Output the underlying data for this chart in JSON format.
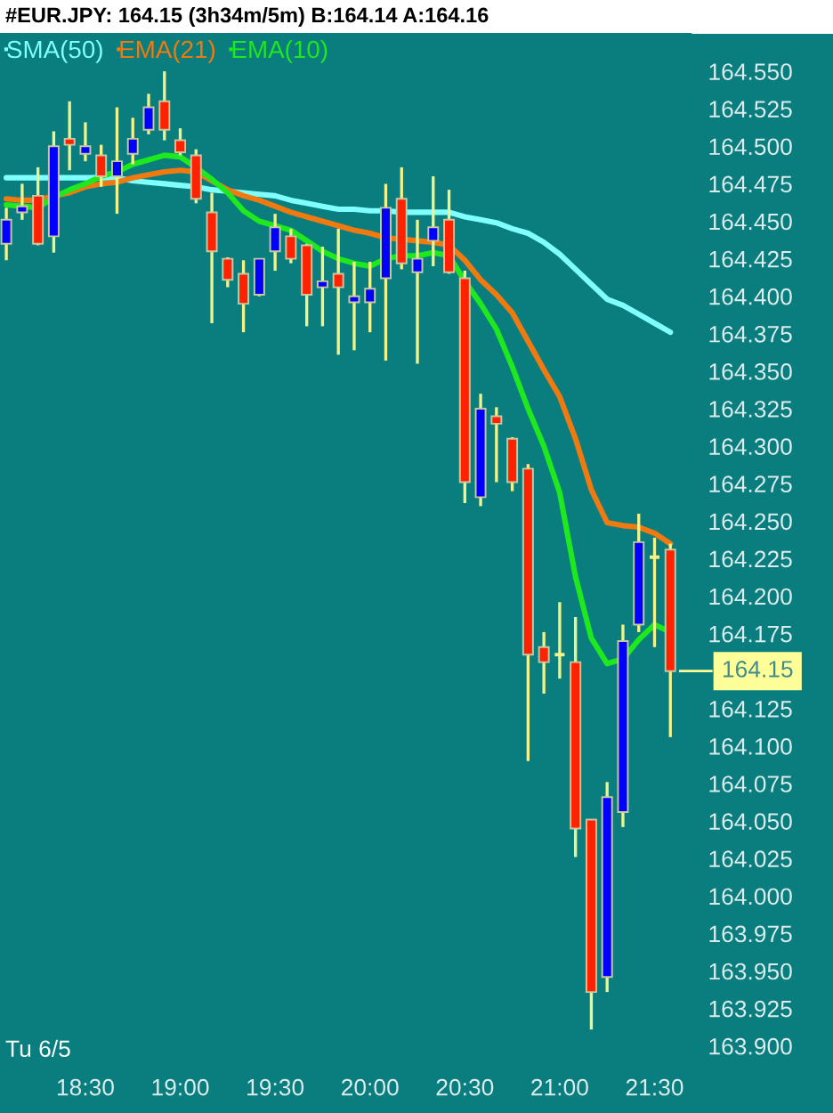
{
  "chart_data": {
    "type": "candlestick",
    "title": "#EUR.JPY: 164.15 (3h34m/5m) B:164.14 A:164.16",
    "x": [
      18.0833,
      18.1667,
      18.25,
      18.3333,
      18.4167,
      18.5,
      18.5833,
      18.6667,
      18.75,
      18.8333,
      18.9167,
      19.0,
      19.0833,
      19.1667,
      19.25,
      19.3333,
      19.4167,
      19.5,
      19.5833,
      19.6667,
      19.75,
      19.8333,
      19.9167,
      20.0,
      20.0833,
      20.1667,
      20.25,
      20.3333,
      20.4167,
      20.5,
      20.5833,
      20.6667,
      20.75,
      20.8333,
      20.9167,
      21.0,
      21.0833,
      21.1667,
      21.25,
      21.3333,
      21.4167,
      21.5,
      21.5833
    ],
    "ohlc": [
      [
        164.435,
        164.459,
        164.424,
        164.451
      ],
      [
        164.456,
        164.475,
        164.451,
        164.46
      ],
      [
        164.467,
        164.486,
        164.434,
        164.435
      ],
      [
        164.44,
        164.51,
        164.429,
        164.5
      ],
      [
        164.505,
        164.53,
        164.484,
        164.501
      ],
      [
        164.495,
        164.516,
        164.49,
        164.5
      ],
      [
        164.494,
        164.501,
        164.473,
        164.48
      ],
      [
        164.48,
        164.526,
        164.455,
        164.49
      ],
      [
        164.495,
        164.519,
        164.488,
        164.505
      ],
      [
        164.511,
        164.535,
        164.508,
        164.526
      ],
      [
        164.53,
        164.55,
        164.504,
        164.511
      ],
      [
        164.504,
        164.512,
        164.494,
        164.496
      ],
      [
        164.494,
        164.498,
        164.462,
        164.465
      ],
      [
        164.456,
        164.469,
        164.382,
        164.43
      ],
      [
        164.425,
        164.426,
        164.406,
        164.411
      ],
      [
        164.415,
        164.424,
        164.376,
        164.395
      ],
      [
        164.401,
        164.425,
        164.4,
        164.425
      ],
      [
        164.43,
        164.455,
        164.417,
        164.446
      ],
      [
        164.44,
        164.445,
        164.422,
        164.425
      ],
      [
        164.434,
        164.435,
        164.38,
        164.401
      ],
      [
        164.406,
        164.433,
        164.38,
        164.41
      ],
      [
        164.415,
        164.445,
        164.361,
        164.406
      ],
      [
        164.396,
        164.423,
        164.364,
        164.4
      ],
      [
        164.396,
        164.423,
        164.376,
        164.405
      ],
      [
        164.412,
        164.475,
        164.357,
        164.459
      ],
      [
        164.465,
        164.486,
        164.418,
        164.422
      ],
      [
        164.416,
        164.451,
        164.355,
        164.425
      ],
      [
        164.437,
        164.48,
        164.42,
        164.446
      ],
      [
        164.451,
        164.471,
        164.415,
        164.416
      ],
      [
        164.412,
        164.417,
        164.262,
        164.276
      ],
      [
        164.266,
        164.335,
        164.26,
        164.325
      ],
      [
        164.32,
        164.326,
        164.276,
        164.315
      ],
      [
        164.305,
        164.306,
        164.27,
        164.276
      ],
      [
        164.285,
        164.288,
        164.09,
        164.161
      ],
      [
        164.166,
        164.176,
        164.135,
        164.156
      ],
      [
        164.161,
        164.196,
        164.145,
        164.161
      ],
      [
        164.156,
        164.186,
        164.026,
        164.045
      ],
      [
        164.051,
        164.051,
        163.911,
        163.936
      ],
      [
        163.946,
        164.076,
        163.936,
        164.066
      ],
      [
        164.056,
        164.181,
        164.046,
        164.17
      ],
      [
        164.181,
        164.255,
        164.176,
        164.236
      ],
      [
        164.226,
        164.239,
        164.166,
        164.226
      ],
      [
        164.231,
        164.235,
        164.106,
        164.15
      ]
    ],
    "colors": [
      "#0000ff",
      "#0000ff",
      "#ff2200",
      "#0000ff",
      "#ff2200",
      "#0000ff",
      "#ff2200",
      "#0000ff",
      "#0000ff",
      "#0000ff",
      "#ff2200",
      "#ff2200",
      "#ff2200",
      "#ff2200",
      "#ff2200",
      "#ff2200",
      "#0000ff",
      "#0000ff",
      "#ff2200",
      "#ff2200",
      "#0000ff",
      "#ff2200",
      "#0000ff",
      "#0000ff",
      "#0000ff",
      "#ff2200",
      "#0000ff",
      "#0000ff",
      "#ff2200",
      "#ff2200",
      "#0000ff",
      "#ff2200",
      "#ff2200",
      "#ff2200",
      "#ff2200",
      "#f2f28a",
      "#ff2200",
      "#ff2200",
      "#0000ff",
      "#0000ff",
      "#0000ff",
      "#f2f28a",
      "#ff2200"
    ],
    "series": [
      {
        "name": "SMA(50)",
        "type": "line",
        "color": "#80ffff",
        "values": [
          164.479,
          164.479,
          164.479,
          164.479,
          164.479,
          164.479,
          164.479,
          164.479,
          164.477,
          164.476,
          164.475,
          164.474,
          164.473,
          164.471,
          164.47,
          164.469,
          164.468,
          164.467,
          164.464,
          164.462,
          164.46,
          164.458,
          164.458,
          164.457,
          164.457,
          164.456,
          164.456,
          164.456,
          164.456,
          164.453,
          164.451,
          164.449,
          164.445,
          164.442,
          164.436,
          164.428,
          164.418,
          164.408,
          164.398,
          164.394,
          164.388,
          164.382,
          164.376
        ]
      },
      {
        "name": "EMA(21)",
        "type": "line",
        "color": "#f07a10",
        "values": [
          164.465,
          164.464,
          164.464,
          164.467,
          164.469,
          164.473,
          164.475,
          164.476,
          164.479,
          164.481,
          164.483,
          164.484,
          164.483,
          164.477,
          164.471,
          164.467,
          164.464,
          164.46,
          164.456,
          164.453,
          164.45,
          164.447,
          164.444,
          164.442,
          164.439,
          164.438,
          164.437,
          164.436,
          164.434,
          164.424,
          164.411,
          164.401,
          164.389,
          164.37,
          164.351,
          164.333,
          164.305,
          164.271,
          164.249,
          164.247,
          164.246,
          164.242,
          164.235
        ]
      },
      {
        "name": "EMA(10)",
        "type": "line",
        "color": "#1ee81e",
        "values": [
          164.461,
          164.46,
          164.459,
          164.466,
          164.471,
          164.475,
          164.48,
          164.483,
          164.488,
          164.491,
          164.494,
          164.493,
          164.486,
          164.478,
          164.469,
          164.457,
          164.45,
          164.447,
          164.444,
          164.437,
          164.43,
          164.425,
          164.422,
          164.42,
          164.425,
          164.427,
          164.427,
          164.429,
          164.427,
          164.41,
          164.395,
          164.378,
          164.353,
          164.325,
          164.3,
          164.269,
          164.213,
          164.172,
          164.155,
          164.158,
          164.171,
          164.181,
          164.176
        ]
      }
    ],
    "xlim": [
      18.05,
      21.69
    ],
    "xticks": [
      {
        "value": 18.5,
        "label": "18:30"
      },
      {
        "value": 19,
        "label": "19:00"
      },
      {
        "value": 19.5,
        "label": "19:30"
      },
      {
        "value": 20,
        "label": "20:00"
      },
      {
        "value": 20.5,
        "label": "20:30"
      },
      {
        "value": 21,
        "label": "21:00"
      },
      {
        "value": 21.5,
        "label": "21:30"
      }
    ],
    "ylim": [
      163.885,
      164.575
    ],
    "yticks": [
      {
        "value": 163.9,
        "label": "163.900"
      },
      {
        "value": 163.925,
        "label": "163.925"
      },
      {
        "value": 163.95,
        "label": "163.950"
      },
      {
        "value": 163.975,
        "label": "163.975"
      },
      {
        "value": 164.0,
        "label": "164.000"
      },
      {
        "value": 164.025,
        "label": "164.025"
      },
      {
        "value": 164.05,
        "label": "164.050"
      },
      {
        "value": 164.075,
        "label": "164.075"
      },
      {
        "value": 164.1,
        "label": "164.100"
      },
      {
        "value": 164.125,
        "label": "164.125"
      },
      {
        "value": 164.175,
        "label": "164.175"
      },
      {
        "value": 164.2,
        "label": "164.200"
      },
      {
        "value": 164.225,
        "label": "164.225"
      },
      {
        "value": 164.25,
        "label": "164.250"
      },
      {
        "value": 164.275,
        "label": "164.275"
      },
      {
        "value": 164.3,
        "label": "164.300"
      },
      {
        "value": 164.325,
        "label": "164.325"
      },
      {
        "value": 164.35,
        "label": "164.350"
      },
      {
        "value": 164.375,
        "label": "164.375"
      },
      {
        "value": 164.4,
        "label": "164.400"
      },
      {
        "value": 164.425,
        "label": "164.425"
      },
      {
        "value": 164.45,
        "label": "164.450"
      },
      {
        "value": 164.475,
        "label": "164.475"
      },
      {
        "value": 164.5,
        "label": "164.500"
      },
      {
        "value": 164.525,
        "label": "164.525"
      },
      {
        "value": 164.55,
        "label": "164.550"
      }
    ],
    "ref_lines": [
      {
        "axis": "y",
        "value": 164.15,
        "label": "164.15",
        "color": "#ffff99"
      }
    ],
    "annotations": [
      "Tu 6/5"
    ],
    "legend": "top left",
    "marker": "none",
    "line_style": "solid"
  }
}
